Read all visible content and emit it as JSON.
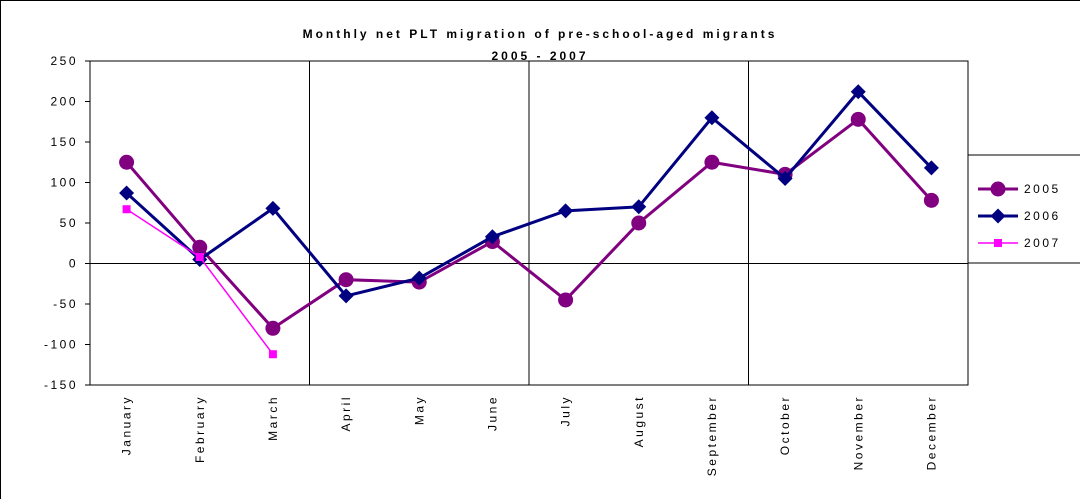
{
  "chart_data": {
    "type": "line",
    "title": "Monthly net PLT migration of pre-school-aged migrants",
    "subtitle": "2005 - 2007",
    "categories": [
      "January",
      "February",
      "March",
      "April",
      "May",
      "June",
      "July",
      "August",
      "September",
      "October",
      "November",
      "December"
    ],
    "series": [
      {
        "name": "2005",
        "color": "#800080",
        "marker": "circle",
        "values": [
          125,
          20,
          -80,
          -20,
          -23,
          27,
          -45,
          50,
          125,
          110,
          178,
          78
        ]
      },
      {
        "name": "2006",
        "color": "#000080",
        "marker": "diamond",
        "values": [
          87,
          5,
          68,
          -40,
          -18,
          33,
          65,
          70,
          180,
          105,
          212,
          118
        ]
      },
      {
        "name": "2007",
        "color": "#ff00ff",
        "marker": "square",
        "values": [
          67,
          8,
          -112,
          null,
          null,
          null,
          null,
          null,
          null,
          null,
          null,
          null
        ]
      }
    ],
    "ylim": [
      -150,
      250
    ],
    "yticks": [
      -150,
      -100,
      -50,
      0,
      50,
      100,
      150,
      200,
      250
    ],
    "legend": "right"
  }
}
